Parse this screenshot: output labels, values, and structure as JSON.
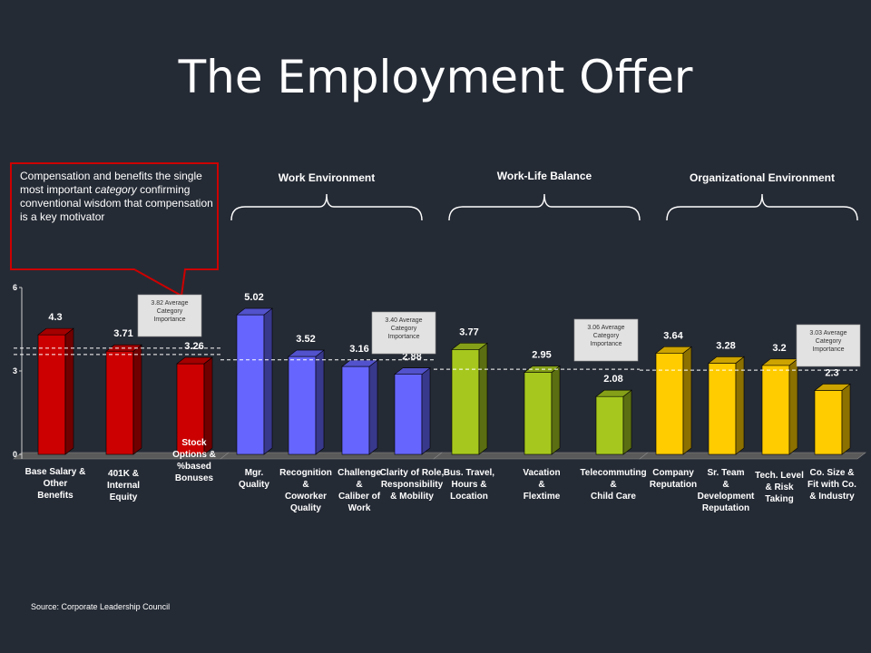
{
  "title": "The Employment Offer",
  "callout": {
    "text_before": "Compensation and benefits the single most important ",
    "text_em": "category",
    "text_after": " confirming conventional wisdom that compensation is a key motivator"
  },
  "source": "Source: Corporate Leadership Council",
  "colors": {
    "compensation": "#cc0000",
    "work_environment": "#6666ff",
    "work_life_balance": "#a6c81e",
    "organizational_environment": "#ffcc00"
  },
  "groups": [
    {
      "label": "Work Environment"
    },
    {
      "label": "Work-Life Balance"
    },
    {
      "label": "Organizational Environment"
    }
  ],
  "chart_data": {
    "type": "bar",
    "ylim": [
      0,
      6
    ],
    "yticks": [
      "0",
      "3",
      "6"
    ],
    "categories": [
      [
        "Base Salary &",
        "Other",
        "Benefits"
      ],
      [
        "401K &",
        "Internal",
        "Equity"
      ],
      [
        "Stock",
        "Options &",
        "%based",
        "Bonuses"
      ],
      [
        "Mgr.",
        "Quality"
      ],
      [
        "Recognition",
        "&",
        "Coworker",
        "Quality"
      ],
      [
        "Challenge",
        "&",
        "Caliber of",
        "Work"
      ],
      [
        "Clarity of Role,",
        "Responsibility",
        "& Mobility"
      ],
      [
        "Bus. Travel,",
        "Hours &",
        "Location"
      ],
      [
        "Vacation",
        "&",
        "Flextime"
      ],
      [
        "Telecommuting",
        "&",
        "Child Care"
      ],
      [
        "Company",
        "Reputation"
      ],
      [
        "Sr. Team",
        "&",
        "Development",
        "Reputation"
      ],
      [
        "Tech. Level",
        "& Risk",
        "Taking"
      ],
      [
        "Co. Size &",
        "Fit with Co.",
        "& Industry"
      ]
    ],
    "values": [
      4.3,
      3.71,
      3.26,
      5.02,
      3.52,
      3.16,
      2.88,
      3.77,
      2.95,
      2.08,
      3.64,
      3.28,
      3.2,
      2.3
    ],
    "value_labels": [
      "4.3",
      "3.71",
      "3.26",
      "5.02",
      "3.52",
      "3.16",
      "2.88",
      "3.77",
      "2.95",
      "2.08",
      "3.64",
      "3.28",
      "3.2",
      "2.3"
    ],
    "bar_groups": [
      "compensation",
      "compensation",
      "compensation",
      "work_environment",
      "work_environment",
      "work_environment",
      "work_environment",
      "work_life_balance",
      "work_life_balance",
      "work_life_balance",
      "organizational_environment",
      "organizational_environment",
      "organizational_environment",
      "organizational_environment"
    ],
    "averages": [
      {
        "value": 3.82,
        "lines": [
          "3.82 Average",
          "Category",
          "Importance"
        ]
      },
      {
        "value": 3.4,
        "lines": [
          "3.40 Average",
          "Category",
          "Importance"
        ]
      },
      {
        "value": 3.06,
        "lines": [
          "3.06 Average",
          "Category",
          "Importance"
        ]
      },
      {
        "value": 3.03,
        "lines": [
          "3.03 Average",
          "Category",
          "Importance"
        ]
      }
    ]
  }
}
